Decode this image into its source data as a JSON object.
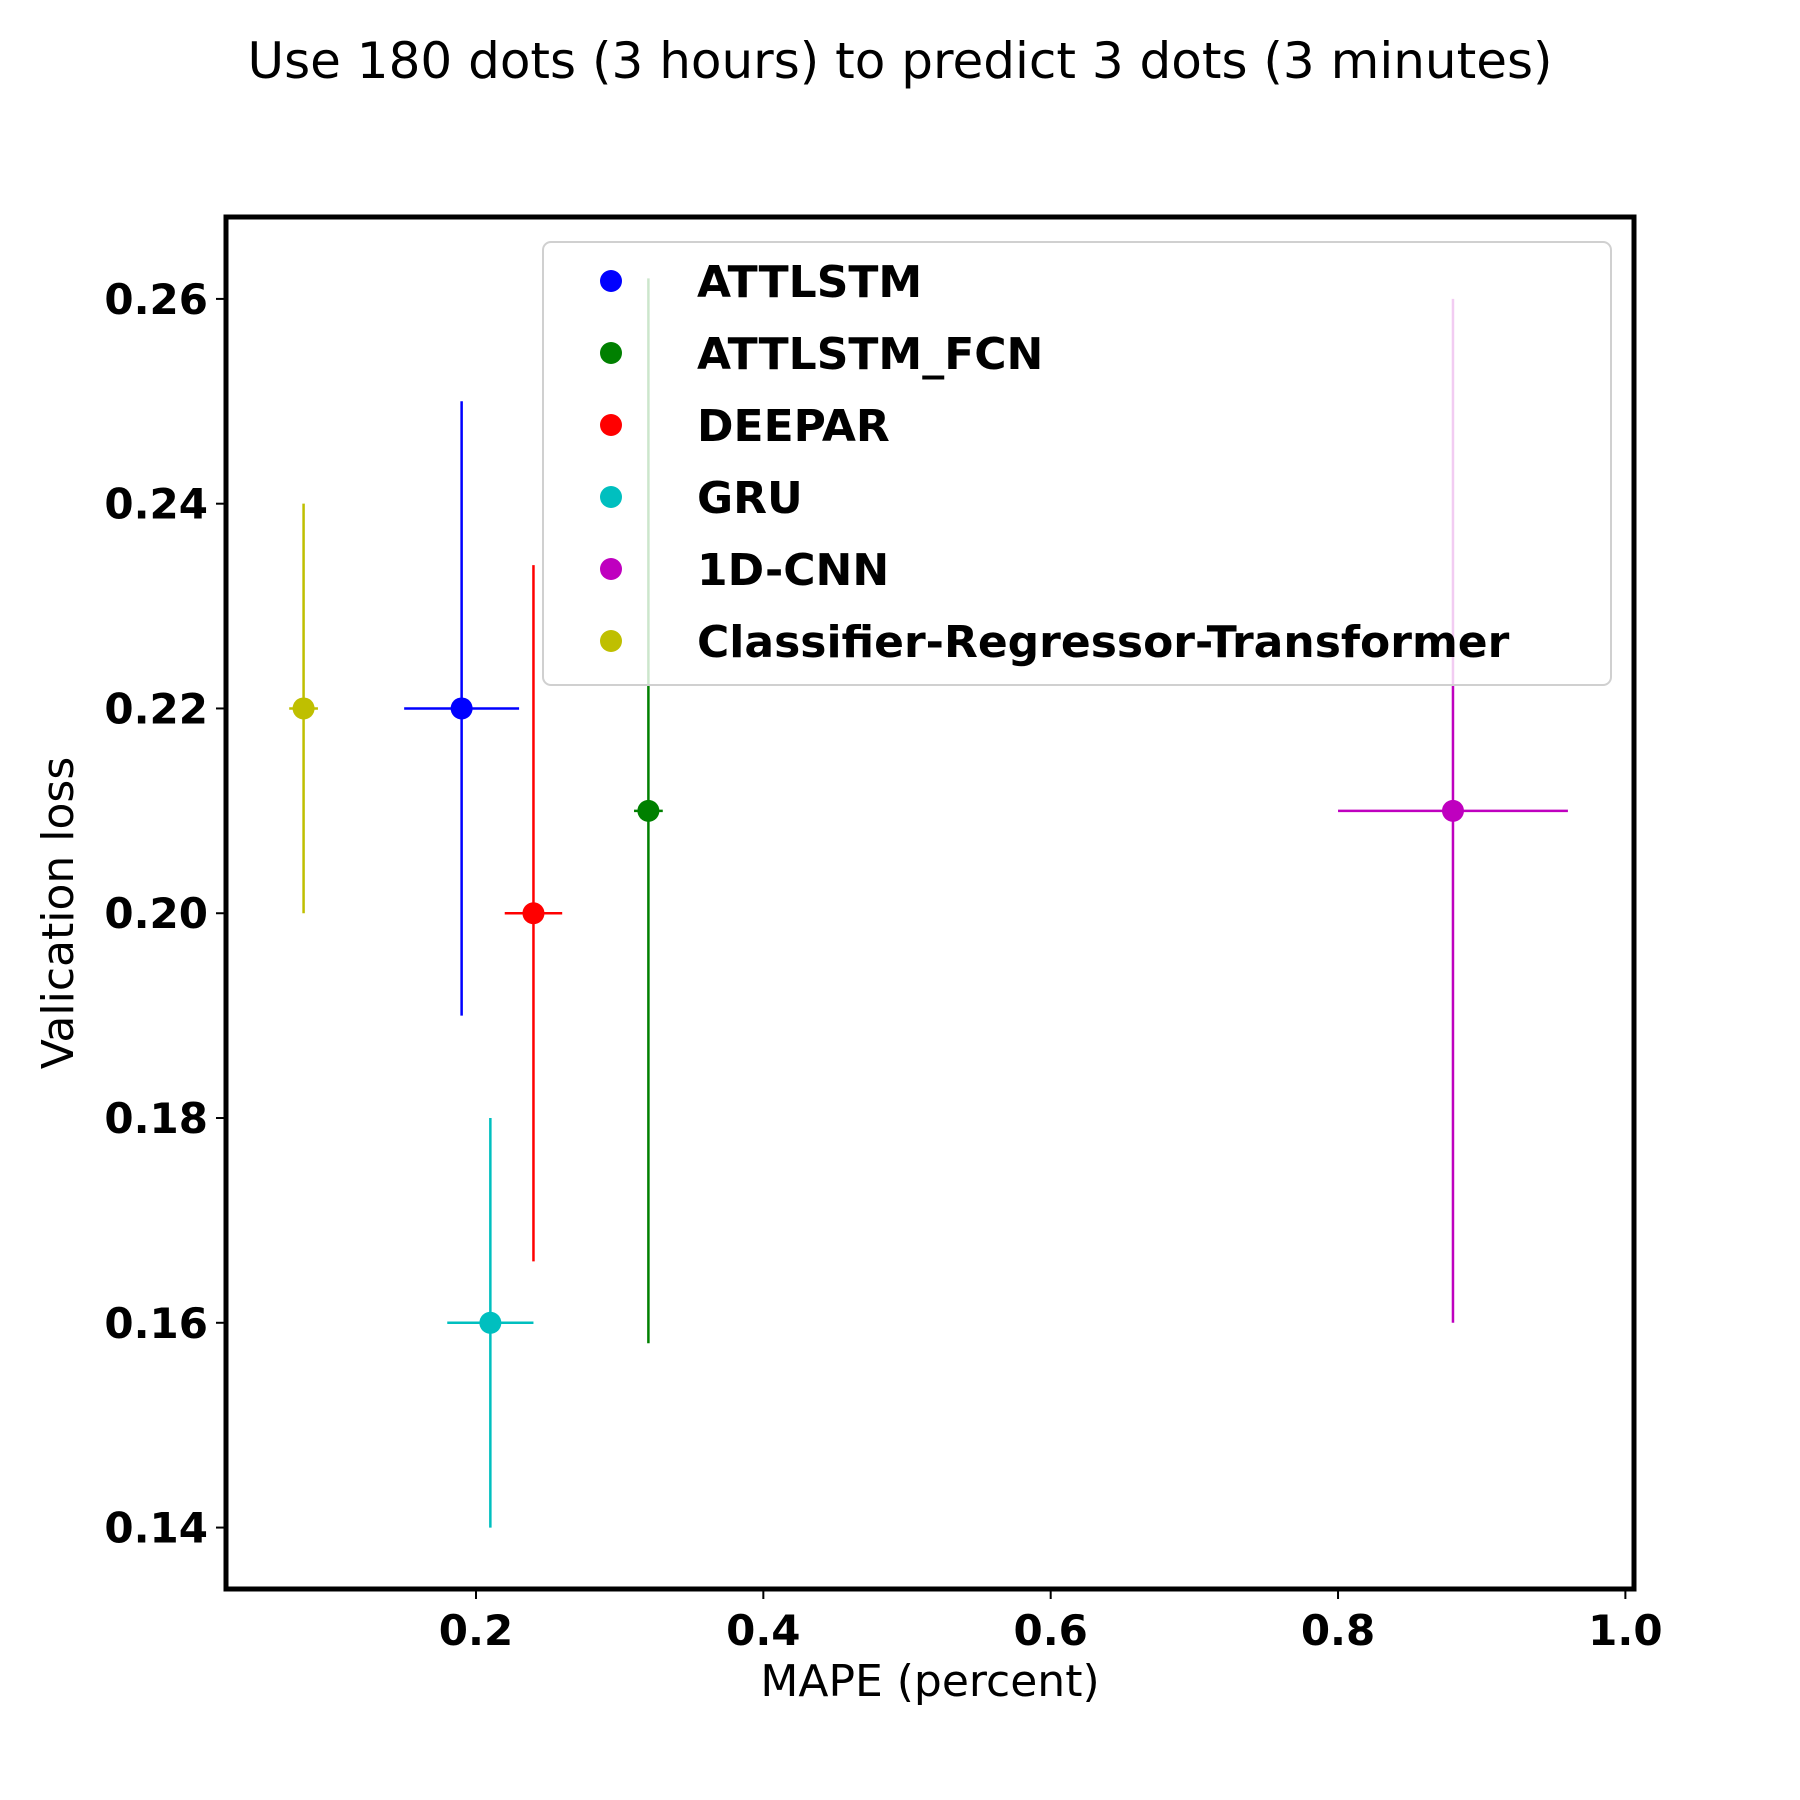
{
  "chart_data": {
    "type": "scatter",
    "title": "Use 180 dots (3 hours) to predict 3 dots (3 minutes)",
    "xlabel": "MAPE (percent)",
    "ylabel": "Valication loss",
    "xlim": [
      0.026,
      1.006
    ],
    "ylim": [
      0.134,
      0.268
    ],
    "xticks": [
      0.2,
      0.4,
      0.6,
      0.8,
      1.0
    ],
    "xtick_labels": [
      "0.2",
      "0.4",
      "0.6",
      "0.8",
      "1.0"
    ],
    "yticks": [
      0.14,
      0.16,
      0.18,
      0.2,
      0.22,
      0.24,
      0.26
    ],
    "ytick_labels": [
      "0.14",
      "0.16",
      "0.18",
      "0.20",
      "0.22",
      "0.24",
      "0.26"
    ],
    "grid": false,
    "legend_position": "top-right",
    "series": [
      {
        "name": "ATTLSTM",
        "color": "#0000ff",
        "x": 0.19,
        "y": 0.22,
        "x_err": [
          0.15,
          0.23
        ],
        "y_err": [
          0.19,
          0.25
        ]
      },
      {
        "name": "ATTLSTM_FCN",
        "color": "#008000",
        "x": 0.32,
        "y": 0.21,
        "x_err": [
          0.31,
          0.33
        ],
        "y_err": [
          0.158,
          0.262
        ]
      },
      {
        "name": "DEEPAR",
        "color": "#ff0000",
        "x": 0.24,
        "y": 0.2,
        "x_err": [
          0.22,
          0.26
        ],
        "y_err": [
          0.166,
          0.234
        ]
      },
      {
        "name": "GRU",
        "color": "#00bfbf",
        "x": 0.21,
        "y": 0.16,
        "x_err": [
          0.18,
          0.24
        ],
        "y_err": [
          0.14,
          0.18
        ]
      },
      {
        "name": "1D-CNN",
        "color": "#bf00bf",
        "x": 0.88,
        "y": 0.21,
        "x_err": [
          0.8,
          0.96
        ],
        "y_err": [
          0.16,
          0.26
        ]
      },
      {
        "name": "Classifier-Regressor-Transformer",
        "color": "#bfbf00",
        "x": 0.08,
        "y": 0.22,
        "x_err": [
          0.07,
          0.09
        ],
        "y_err": [
          0.2,
          0.24
        ]
      }
    ]
  }
}
